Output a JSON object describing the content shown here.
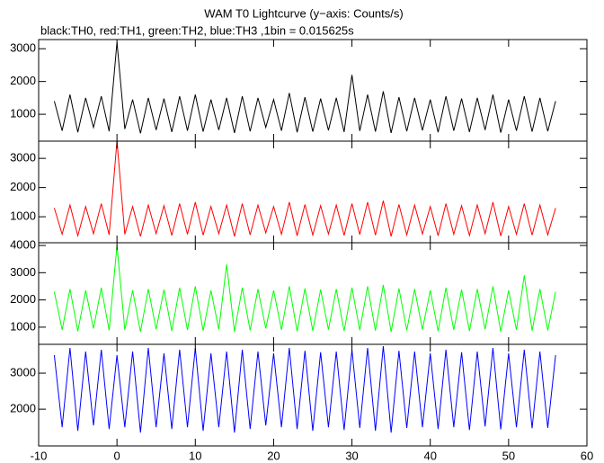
{
  "chart_data": {
    "type": "line",
    "title": "WAM T0 Lightcurve (y−axis: Counts/s)",
    "subtitle": "black:TH0, red:TH1, green:TH2, blue:TH3 ,1bin = 0.015625s",
    "xlim": [
      -10,
      60
    ],
    "xticks": [
      -10,
      0,
      10,
      20,
      30,
      40,
      50,
      60
    ],
    "x": [
      -8,
      -7,
      -6,
      -5,
      -4,
      -3,
      -2,
      -1,
      0,
      1,
      2,
      3,
      4,
      5,
      6,
      7,
      8,
      9,
      10,
      11,
      12,
      13,
      14,
      15,
      16,
      17,
      18,
      19,
      20,
      21,
      22,
      23,
      24,
      25,
      26,
      27,
      28,
      29,
      30,
      31,
      32,
      33,
      34,
      35,
      36,
      37,
      38,
      39,
      40,
      41,
      42,
      43,
      44,
      45,
      46,
      47,
      48,
      49,
      50,
      51,
      52,
      53,
      54,
      55,
      56
    ],
    "panels": [
      {
        "ylim": [
          180,
          3280
        ],
        "yticks": [
          1000,
          2000,
          3000
        ],
        "series": [
          {
            "color": "#000000",
            "values": [
              1400,
              500,
              1600,
              450,
              1500,
              600,
              1550,
              480,
              3200,
              550,
              1450,
              420,
              1500,
              520,
              1480,
              460,
              1550,
              500,
              1600,
              470,
              1450,
              520,
              1500,
              430,
              1550,
              480,
              1500,
              600,
              1450,
              500,
              1650,
              450,
              1520,
              470,
              1480,
              510,
              1500,
              460,
              2200,
              490,
              1600,
              470,
              1700,
              430,
              1520,
              480,
              1500,
              510,
              1450,
              450,
              1550,
              500,
              1480,
              460,
              1500,
              520,
              1600,
              440,
              1450,
              500,
              1550,
              470,
              1500,
              480,
              1400
            ]
          }
        ]
      },
      {
        "ylim": [
          110,
          3590
        ],
        "yticks": [
          1000,
          2000,
          3000
        ],
        "series": [
          {
            "color": "#ff0000",
            "values": [
              1300,
              400,
              1400,
              350,
              1350,
              420,
              1450,
              380,
              3600,
              400,
              1350,
              330,
              1400,
              420,
              1380,
              360,
              1450,
              400,
              1500,
              370,
              1350,
              420,
              1400,
              330,
              1450,
              380,
              1400,
              450,
              1350,
              400,
              1500,
              350,
              1420,
              370,
              1380,
              410,
              1400,
              360,
              1450,
              390,
              1500,
              370,
              1550,
              330,
              1420,
              380,
              1400,
              410,
              1350,
              350,
              1450,
              400,
              1380,
              360,
              1400,
              420,
              1500,
              340,
              1350,
              400,
              1450,
              370,
              1400,
              380,
              1300
            ]
          }
        ]
      },
      {
        "ylim": [
          370,
          4100
        ],
        "yticks": [
          1000,
          2000,
          3000,
          4000
        ],
        "series": [
          {
            "color": "#00ff00",
            "values": [
              2300,
              900,
              2400,
              850,
              2350,
              950,
              2450,
              880,
              4000,
              900,
              2350,
              830,
              2400,
              920,
              2380,
              860,
              2450,
              900,
              2500,
              870,
              2350,
              920,
              3300,
              830,
              2450,
              880,
              2400,
              950,
              2350,
              900,
              2500,
              850,
              2420,
              870,
              2380,
              910,
              2400,
              860,
              2450,
              890,
              2500,
              870,
              2550,
              830,
              2420,
              880,
              2400,
              910,
              2350,
              850,
              2450,
              900,
              2380,
              860,
              2400,
              920,
              2500,
              840,
              2350,
              900,
              2900,
              870,
              2400,
              880,
              2300
            ]
          }
        ]
      },
      {
        "ylim": [
          980,
          3800
        ],
        "yticks": [
          2000,
          3000
        ],
        "series": [
          {
            "color": "#0000ff",
            "values": [
              3500,
              1500,
              3700,
              1400,
              3600,
              1550,
              3650,
              1450,
              3500,
              1500,
              3600,
              1350,
              3700,
              1500,
              3550,
              1450,
              3650,
              1500,
              3700,
              1400,
              3550,
              1500,
              3600,
              1350,
              3650,
              1450,
              3600,
              1550,
              3550,
              1500,
              3700,
              1450,
              3620,
              1400,
              3580,
              1500,
              3600,
              1420,
              3650,
              1480,
              3700,
              1400,
              3750,
              1350,
              3620,
              1480,
              3600,
              1500,
              3550,
              1450,
              3650,
              1500,
              3580,
              1420,
              3600,
              1520,
              3700,
              1440,
              3550,
              1500,
              3650,
              1470,
              3600,
              1480,
              3500
            ]
          }
        ]
      }
    ]
  }
}
